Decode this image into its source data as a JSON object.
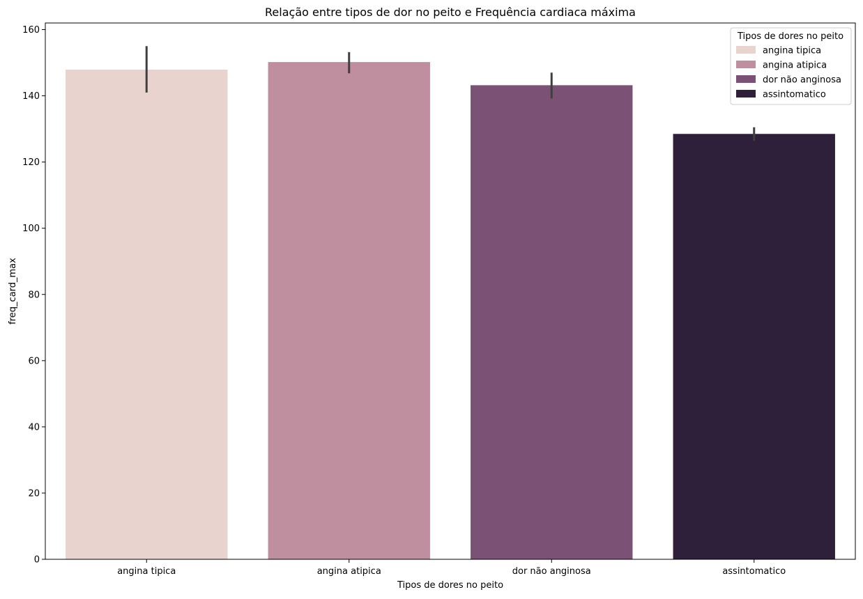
{
  "chart_data": {
    "type": "bar",
    "title": "Relação entre tipos de dor no peito e Frequência cardiaca máxima",
    "xlabel": "Tipos de dores no peito",
    "ylabel": "freq_card_max",
    "categories": [
      "angina tipica",
      "angina atipica",
      "dor não anginosa",
      "assintomatico"
    ],
    "values": [
      147.9,
      150.2,
      143.2,
      128.5
    ],
    "error_low": [
      141.0,
      146.8,
      139.2,
      126.4
    ],
    "error_high": [
      155.0,
      153.2,
      147.0,
      130.5
    ],
    "colors": [
      "#e8d3ce",
      "#c08f9f",
      "#7b5276",
      "#2e203a"
    ],
    "ylim": [
      0,
      162
    ],
    "yticks": [
      0,
      20,
      40,
      60,
      80,
      100,
      120,
      140,
      160
    ],
    "grid": false,
    "legend": {
      "title": "Tipos de dores no peito",
      "placement": "top-right",
      "entries": [
        "angina tipica",
        "angina atipica",
        "dor não anginosa",
        "assintomatico"
      ]
    }
  }
}
